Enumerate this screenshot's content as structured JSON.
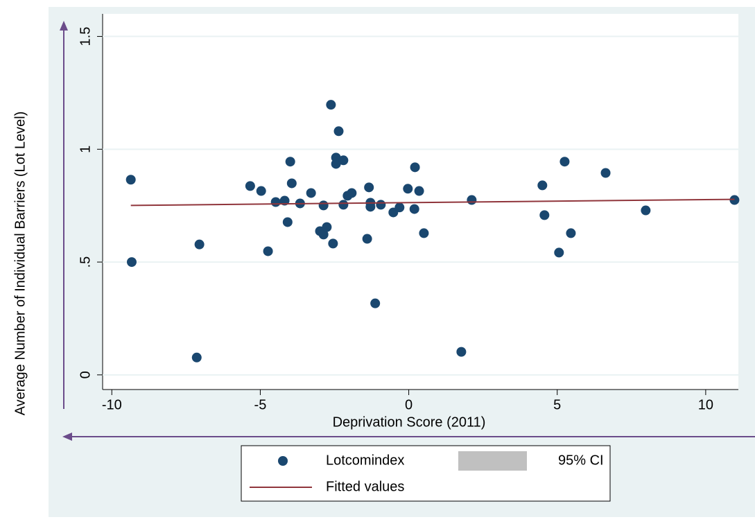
{
  "chart_data": {
    "type": "scatter",
    "x_label": "Deprivation Score (2011)",
    "y_label": "Average Number of Individual Barriers (Lot Level)",
    "xlim": [
      -10.31,
      11.1
    ],
    "xticks": [
      -10,
      -5,
      0,
      5,
      10
    ],
    "ylim": [
      -0.065,
      1.6
    ],
    "yticks": [
      0,
      {
        "value": 0.5,
        "label": ".5"
      },
      1,
      1.5
    ],
    "grid": true,
    "series": [
      {
        "name": "Lotcomindex",
        "type": "scatter",
        "color": "#1a476f",
        "x": [
          -9.36,
          -9.33,
          -7.05,
          -7.14,
          -5.34,
          -4.97,
          -4.74,
          -4.48,
          -4.18,
          -4.08,
          -3.99,
          -3.94,
          -3.66,
          -3.29,
          -2.99,
          -2.87,
          -2.87,
          -2.76,
          -2.62,
          -2.55,
          -2.45,
          -2.45,
          -2.36,
          -2.2,
          -2.2,
          -2.06,
          -1.92,
          -1.4,
          -1.34,
          -1.29,
          -1.29,
          -1.13,
          -0.94,
          -0.52,
          -0.31,
          -0.03,
          0.19,
          0.21,
          0.35,
          0.51,
          1.77,
          2.12,
          4.5,
          4.57,
          5.06,
          5.25,
          5.46,
          6.63,
          7.98,
          10.97
        ],
        "values": [
          0.865,
          0.5,
          0.578,
          0.077,
          0.837,
          0.815,
          0.548,
          0.766,
          0.772,
          0.677,
          0.945,
          0.849,
          0.76,
          0.806,
          0.637,
          0.622,
          0.751,
          0.655,
          1.197,
          0.582,
          0.963,
          0.935,
          1.08,
          0.951,
          0.754,
          0.794,
          0.806,
          0.603,
          0.831,
          0.763,
          0.745,
          0.317,
          0.754,
          0.72,
          0.742,
          0.825,
          0.735,
          0.92,
          0.815,
          0.628,
          0.102,
          0.775,
          0.84,
          0.708,
          0.542,
          0.945,
          0.628,
          0.895,
          0.729,
          0.775
        ]
      },
      {
        "name": "95% CI",
        "type": "area",
        "color": "#c0c0c0",
        "x": [],
        "values": []
      },
      {
        "name": "Fitted values",
        "type": "line",
        "color": "#90353b",
        "x": [
          -9.36,
          10.97
        ],
        "values": [
          0.751,
          0.778
        ]
      }
    ]
  }
}
